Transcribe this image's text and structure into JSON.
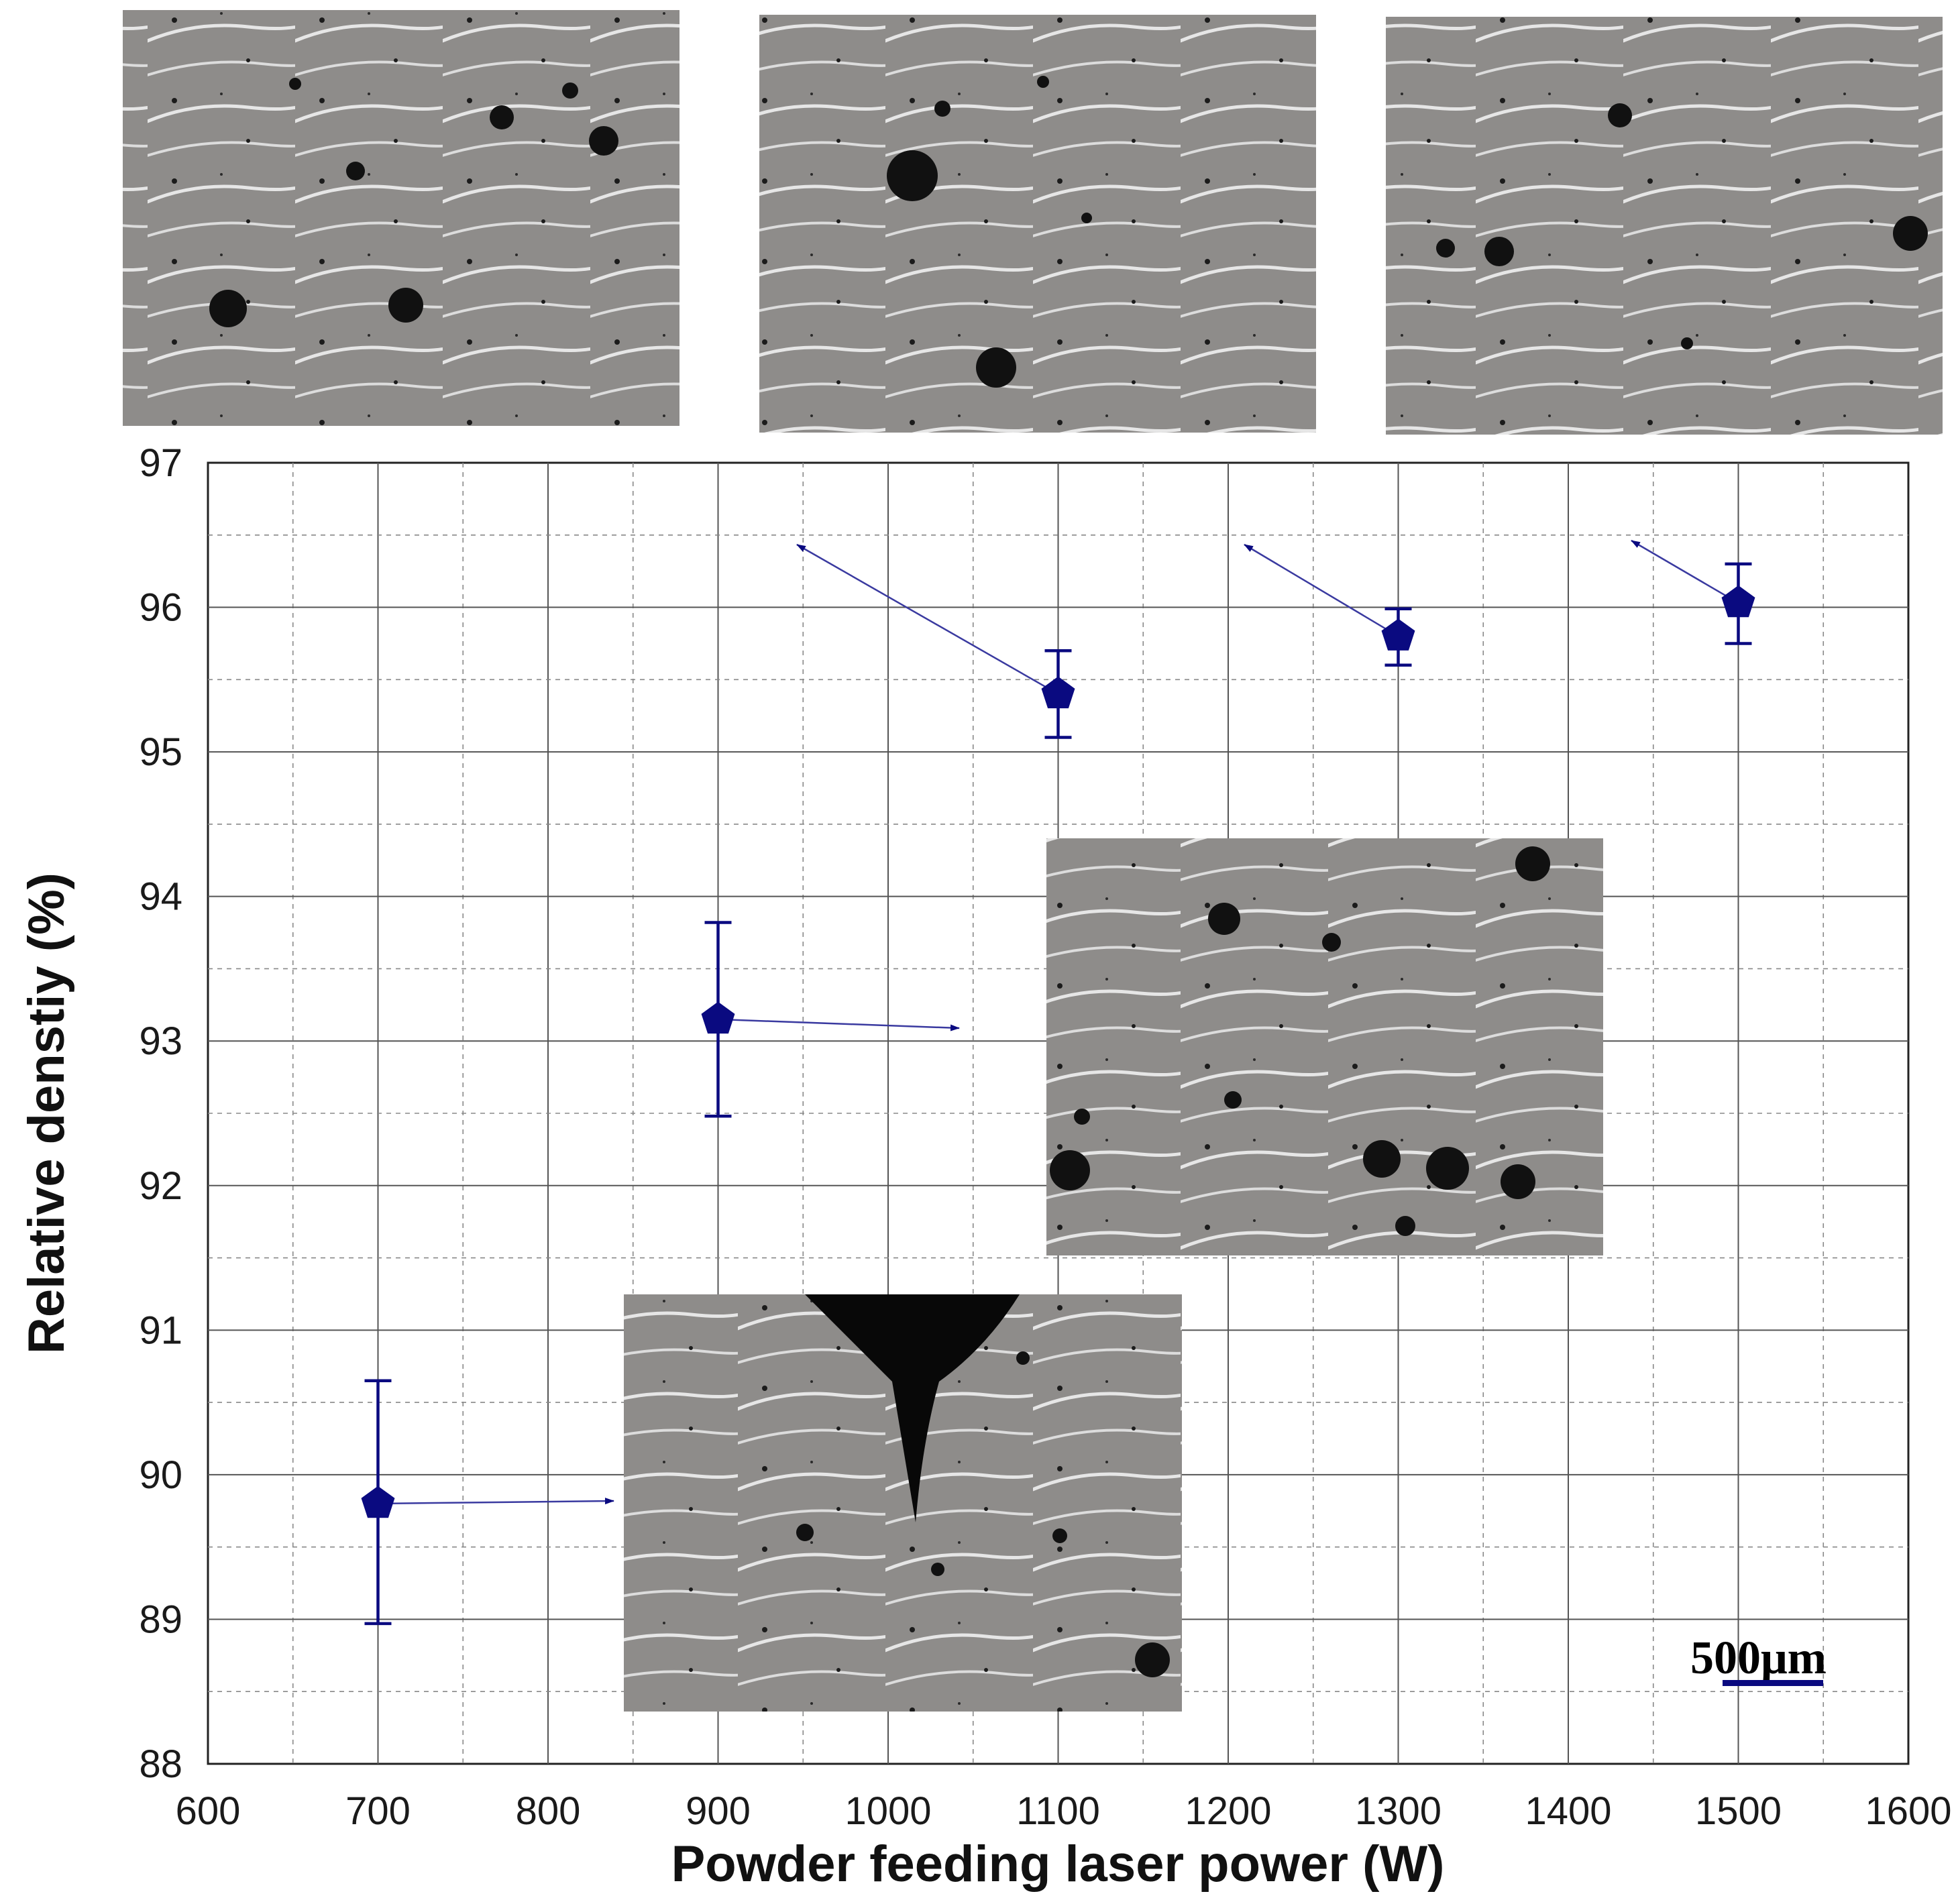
{
  "chart_data": {
    "type": "scatter",
    "xlabel": "Powder feeding laser power (W)",
    "ylabel": "Relative denstiy (%)",
    "xlim": [
      600,
      1600
    ],
    "ylim": [
      88,
      97
    ],
    "x_ticks": [
      "600",
      "700",
      "800",
      "900",
      "1000",
      "1100",
      "1200",
      "1300",
      "1400",
      "1500",
      "1600"
    ],
    "y_ticks": [
      "88",
      "89",
      "90",
      "91",
      "92",
      "93",
      "94",
      "95",
      "96",
      "97"
    ],
    "grid": true,
    "marker": "pentagon",
    "series": [
      {
        "points": [
          {
            "x": 700,
            "y": 89.8,
            "err_low": 88.97,
            "err_high": 90.65
          },
          {
            "x": 900,
            "y": 93.15,
            "err_low": 92.48,
            "err_high": 93.82
          },
          {
            "x": 1100,
            "y": 95.4,
            "err_low": 95.1,
            "err_high": 95.7
          },
          {
            "x": 1300,
            "y": 95.8,
            "err_low": 95.6,
            "err_high": 95.99
          },
          {
            "x": 1500,
            "y": 96.03,
            "err_low": 95.75,
            "err_high": 96.3
          }
        ]
      }
    ],
    "colors": {
      "series": "#0a0a80",
      "arrow": "#3a3aa0"
    },
    "scale_bar": {
      "label": "500μm"
    },
    "micrographs": [
      "700 W",
      "900 W",
      "1100 W",
      "1300 W",
      "1500 W"
    ]
  }
}
